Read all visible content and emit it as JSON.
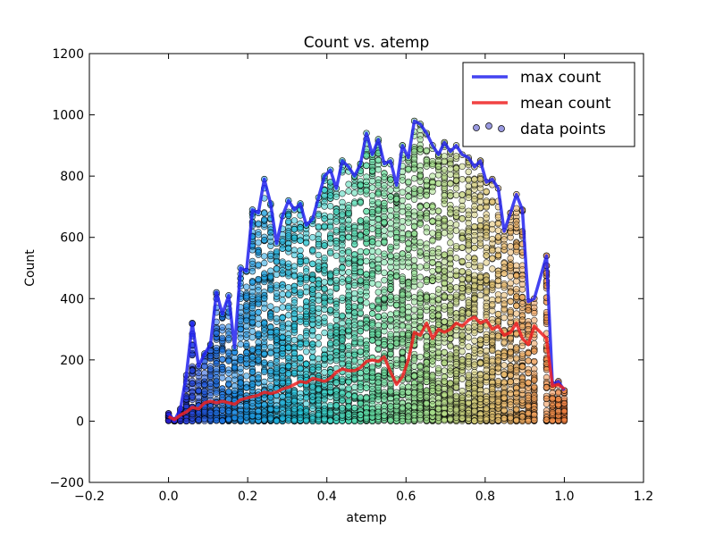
{
  "chart_data": {
    "type": "scatter",
    "title": "Count vs. atemp",
    "xlabel": "atemp",
    "ylabel": "Count",
    "xlim": [
      -0.2,
      1.2
    ],
    "ylim": [
      -200,
      1200
    ],
    "xticks": [
      -0.2,
      0.0,
      0.2,
      0.4,
      0.6,
      0.8,
      1.0,
      1.2
    ],
    "xtick_labels": [
      "−0.2",
      "0.0",
      "0.2",
      "0.4",
      "0.6",
      "0.8",
      "1.0",
      "1.2"
    ],
    "yticks": [
      -200,
      0,
      200,
      400,
      600,
      800,
      1000,
      1200
    ],
    "ytick_labels": [
      "−200",
      "0",
      "200",
      "400",
      "600",
      "800",
      "1000",
      "1200"
    ],
    "grid": false,
    "legend_position": "top-right",
    "colormap": [
      "#2a1fd0",
      "#1a8ae6",
      "#27c4d8",
      "#5ee0a8",
      "#a8e08a",
      "#e8c070",
      "#f08040"
    ],
    "series": [
      {
        "name": "max count",
        "kind": "line",
        "color": "#2222ee",
        "x": [
          0.0,
          0.015,
          0.03,
          0.045,
          0.06,
          0.076,
          0.091,
          0.106,
          0.121,
          0.136,
          0.152,
          0.167,
          0.182,
          0.197,
          0.212,
          0.227,
          0.242,
          0.258,
          0.273,
          0.288,
          0.303,
          0.318,
          0.333,
          0.348,
          0.364,
          0.379,
          0.394,
          0.409,
          0.424,
          0.439,
          0.455,
          0.47,
          0.485,
          0.5,
          0.515,
          0.53,
          0.545,
          0.561,
          0.576,
          0.591,
          0.606,
          0.621,
          0.636,
          0.652,
          0.667,
          0.682,
          0.697,
          0.712,
          0.727,
          0.742,
          0.758,
          0.773,
          0.788,
          0.803,
          0.818,
          0.833,
          0.848,
          0.864,
          0.879,
          0.894,
          0.909,
          0.924,
          0.955,
          0.97,
          0.985,
          1.0
        ],
        "y": [
          25,
          2,
          40,
          150,
          320,
          180,
          220,
          250,
          420,
          350,
          410,
          240,
          500,
          490,
          690,
          680,
          790,
          710,
          580,
          670,
          720,
          690,
          710,
          640,
          660,
          730,
          800,
          820,
          760,
          850,
          830,
          800,
          840,
          940,
          870,
          920,
          840,
          850,
          770,
          900,
          860,
          980,
          970,
          940,
          900,
          870,
          910,
          880,
          900,
          870,
          860,
          830,
          850,
          780,
          790,
          760,
          620,
          680,
          740,
          690,
          390,
          400,
          540,
          120,
          130,
          100
        ]
      },
      {
        "name": "mean count",
        "kind": "line",
        "color": "#ee2222",
        "x": [
          0.0,
          0.015,
          0.03,
          0.045,
          0.06,
          0.076,
          0.091,
          0.106,
          0.121,
          0.136,
          0.152,
          0.167,
          0.182,
          0.197,
          0.212,
          0.227,
          0.242,
          0.258,
          0.273,
          0.288,
          0.303,
          0.318,
          0.333,
          0.348,
          0.364,
          0.379,
          0.394,
          0.409,
          0.424,
          0.439,
          0.455,
          0.47,
          0.485,
          0.5,
          0.515,
          0.53,
          0.545,
          0.561,
          0.576,
          0.591,
          0.606,
          0.621,
          0.636,
          0.652,
          0.667,
          0.682,
          0.697,
          0.712,
          0.727,
          0.742,
          0.758,
          0.773,
          0.788,
          0.803,
          0.818,
          0.833,
          0.848,
          0.864,
          0.879,
          0.894,
          0.909,
          0.924,
          0.955,
          0.97,
          0.985,
          1.0
        ],
        "y": [
          15,
          5,
          20,
          30,
          45,
          40,
          60,
          65,
          60,
          65,
          60,
          55,
          70,
          75,
          80,
          85,
          95,
          90,
          95,
          105,
          110,
          120,
          130,
          125,
          140,
          135,
          130,
          140,
          160,
          170,
          165,
          165,
          175,
          195,
          200,
          195,
          210,
          160,
          120,
          145,
          200,
          290,
          280,
          320,
          270,
          300,
          290,
          300,
          320,
          310,
          330,
          340,
          320,
          330,
          300,
          310,
          280,
          290,
          320,
          270,
          250,
          310,
          270,
          115,
          120,
          105
        ]
      },
      {
        "name": "data points",
        "kind": "scatter",
        "color": "#5555cc",
        "note": "dense cloud: many points at each atemp level spread from 0 up to the max envelope, coloured by atemp"
      }
    ]
  }
}
